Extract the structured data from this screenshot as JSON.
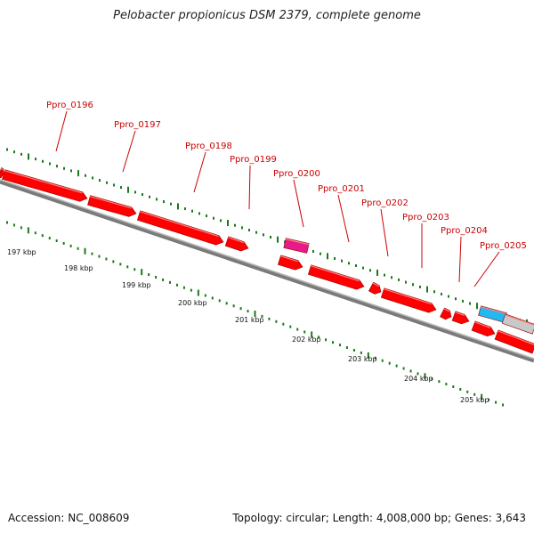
{
  "title": "Pelobacter propionicus DSM 2379, complete genome",
  "footer": {
    "accession": "Accession: NC_008609",
    "summary": "Topology: circular; Length: 4,008,000 bp; Genes: 3,643"
  },
  "colors": {
    "cds": "#ff0000",
    "rna": "#e8198b",
    "highlight": "#22b8f0",
    "partial": "#c8c8c8",
    "tick": "#1a7a1a",
    "label": "#cc0000",
    "backbone": "#7a7a7a"
  },
  "gene_labels": [
    "Ppro_0196",
    "Ppro_0197",
    "Ppro_0198",
    "Ppro_0199",
    "Ppro_0200",
    "Ppro_0201",
    "Ppro_0202",
    "Ppro_0203",
    "Ppro_0204",
    "Ppro_0205"
  ],
  "kbp_labels": [
    "197 kbp",
    "198 kbp",
    "199 kbp",
    "200 kbp",
    "201 kbp",
    "202 kbp",
    "203 kbp",
    "204 kbp",
    "205 kbp"
  ]
}
